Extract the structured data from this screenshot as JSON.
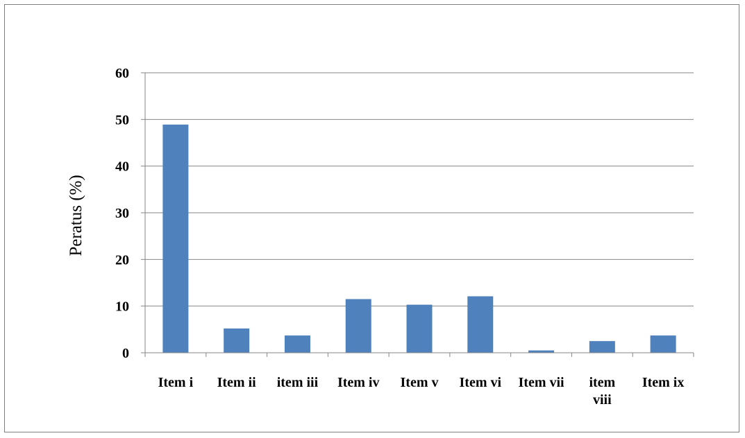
{
  "chart_data": {
    "type": "bar",
    "title": "",
    "xlabel": "",
    "ylabel": "Peratus (%)",
    "ylim": [
      0,
      60
    ],
    "yticks": [
      "0",
      "10",
      "20",
      "30",
      "40",
      "50",
      "60"
    ],
    "grid": true,
    "categories": [
      [
        "Item i"
      ],
      [
        "Item ii"
      ],
      [
        "item iii"
      ],
      [
        "Item iv"
      ],
      [
        "Item v"
      ],
      [
        "Item vi"
      ],
      [
        "Item vii"
      ],
      [
        "item",
        "viii"
      ],
      [
        "Item ix"
      ]
    ],
    "values": [
      48.9,
      5.2,
      3.7,
      11.5,
      10.3,
      12.1,
      0.5,
      2.5,
      3.7
    ],
    "bar_color": "#4f81bd",
    "grid_color": "#868686"
  }
}
